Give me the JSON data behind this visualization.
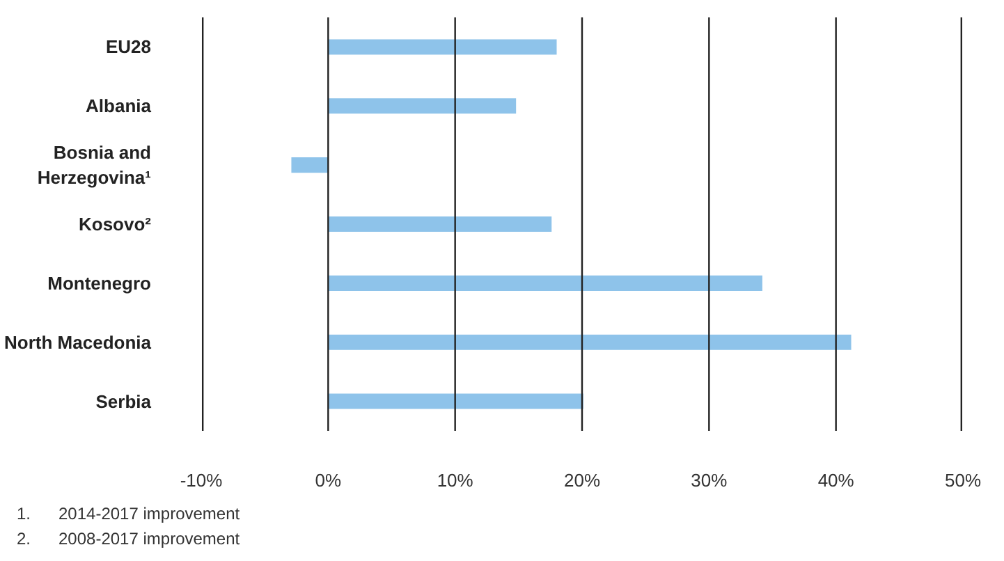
{
  "chart_data": {
    "type": "bar",
    "orientation": "horizontal",
    "categories": [
      "EU28",
      "Albania",
      "Bosnia and Herzegovina¹",
      "Kosovo²",
      "Montenegro",
      "North Macedonia",
      "Serbia"
    ],
    "values": [
      18.0,
      14.8,
      -2.9,
      17.6,
      34.2,
      41.2,
      20.1
    ],
    "color": "#8ec3ea",
    "xlim": [
      -10,
      50
    ],
    "xticks": [
      {
        "value": -10,
        "label": "-10%"
      },
      {
        "value": 0,
        "label": "0%"
      },
      {
        "value": 10,
        "label": "10%"
      },
      {
        "value": 20,
        "label": "20%"
      },
      {
        "value": 30,
        "label": "30%"
      },
      {
        "value": 40,
        "label": "40%"
      },
      {
        "value": 50,
        "label": "50%"
      }
    ],
    "grid": "x",
    "annotations": [
      "1.      2014-2017 improvement",
      "2.      2008-2017 improvement"
    ]
  }
}
